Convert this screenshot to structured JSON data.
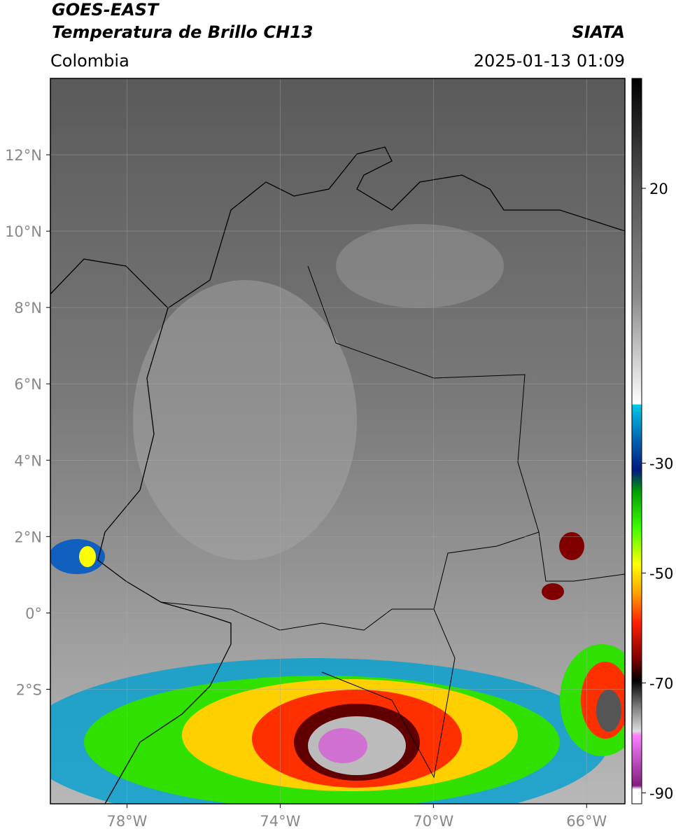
{
  "header": {
    "title": "GOES-EAST",
    "subtitle": "Temperatura de Brillo CH13",
    "source": "SIATA",
    "region": "Colombia",
    "datetime": "2025-01-13 01:09"
  },
  "map": {
    "xlim": [
      -80,
      -65
    ],
    "ylim": [
      -5,
      14
    ],
    "xticks": [
      {
        "value": -78,
        "label": "78°W"
      },
      {
        "value": -74,
        "label": "74°W"
      },
      {
        "value": -70,
        "label": "70°W"
      },
      {
        "value": -66,
        "label": "66°W"
      }
    ],
    "yticks": [
      {
        "value": 12,
        "label": "12°N"
      },
      {
        "value": 10,
        "label": "10°N"
      },
      {
        "value": 8,
        "label": "8°N"
      },
      {
        "value": 6,
        "label": "6°N"
      },
      {
        "value": 4,
        "label": "4°N"
      },
      {
        "value": 2,
        "label": "2°N"
      },
      {
        "value": 0,
        "label": "0°"
      },
      {
        "value": -2,
        "label": "2°S"
      }
    ],
    "colorbar": {
      "lim": [
        -92,
        40
      ],
      "ticks": [
        20,
        -30,
        -50,
        -70,
        -90
      ]
    }
  }
}
